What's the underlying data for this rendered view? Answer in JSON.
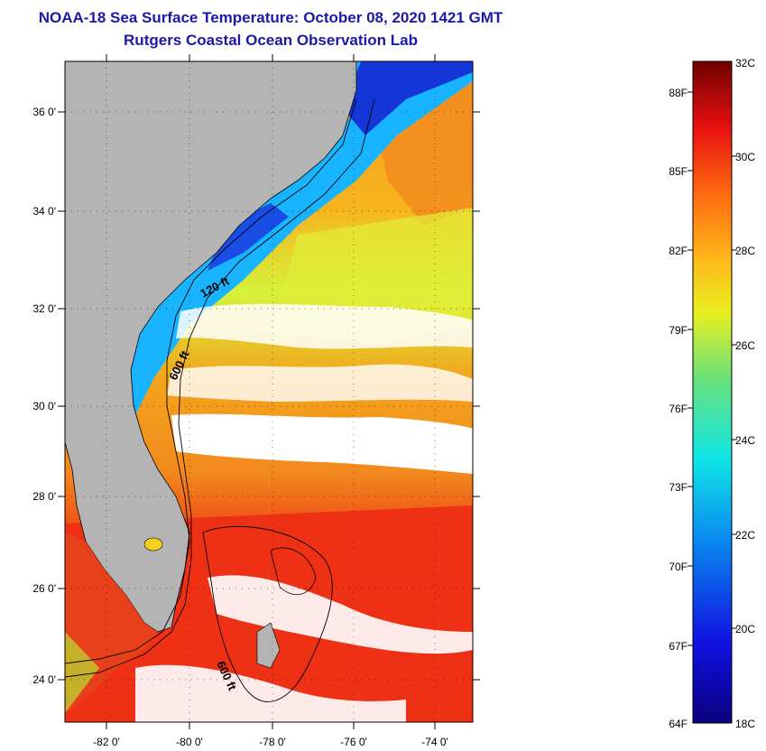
{
  "title": {
    "line1": "NOAA-18 Sea Surface Temperature:  October 08, 2020 1421 GMT",
    "line2": "Rutgers Coastal Ocean Observation Lab"
  },
  "map": {
    "lat_labels": [
      "36 0'",
      "34 0'",
      "32 0'",
      "30 0'",
      "28 0'",
      "26 0'",
      "24 0'"
    ],
    "lon_labels": [
      "-82 0'",
      "-80 0'",
      "-78 0'",
      "-76 0'",
      "-74 0'"
    ],
    "contour_labels": [
      "120 ft",
      "600 ft",
      "600 ft"
    ],
    "colors": {
      "land": "#b4b4b4",
      "cloud": "#ffffff",
      "cold": "#1436d8",
      "cool": "#19b4ff",
      "mild": "#d6f23a",
      "warm": "#f5a020",
      "hot": "#ee3015"
    }
  },
  "colorbar": {
    "fahrenheit_labels": [
      "88F",
      "85F",
      "82F",
      "79F",
      "76F",
      "73F",
      "70F",
      "67F",
      "64F"
    ],
    "celsius_labels": [
      "32C",
      "30C",
      "28C",
      "26C",
      "24C",
      "22C",
      "20C",
      "18C"
    ]
  }
}
